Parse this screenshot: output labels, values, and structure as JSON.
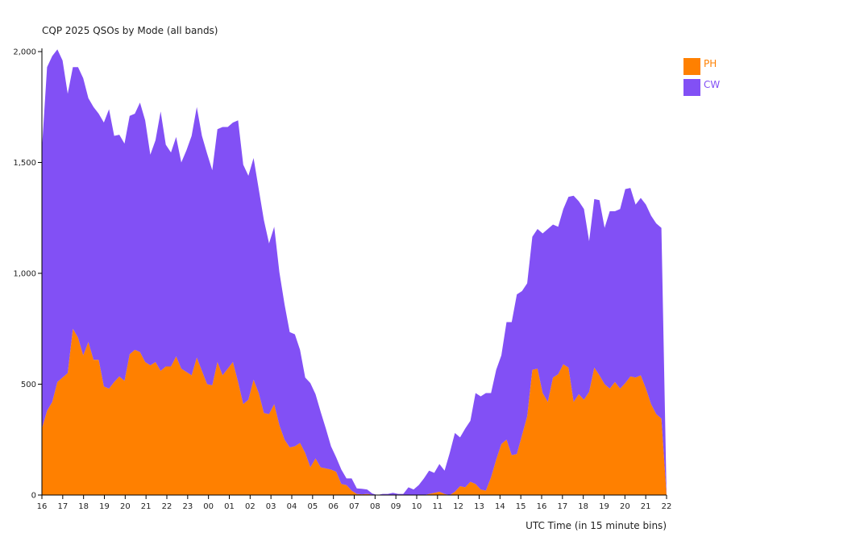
{
  "chart_data": {
    "type": "area",
    "stacked": true,
    "title": "CQP 2025 QSOs by Mode (all bands)",
    "xlabel": "UTC Time (in 15 minute bins)",
    "ylabel": "",
    "ylim": [
      0,
      2000
    ],
    "y_ticks": [
      0,
      500,
      1000,
      1500,
      2000
    ],
    "y_tick_labels": [
      "0",
      "500",
      "1,000",
      "1,500",
      "2,000"
    ],
    "x_tick_labels": [
      "16",
      "17",
      "18",
      "19",
      "20",
      "21",
      "22",
      "23",
      "00",
      "01",
      "02",
      "03",
      "04",
      "05",
      "06",
      "07",
      "08",
      "09",
      "10",
      "11",
      "12",
      "13",
      "14",
      "15",
      "16",
      "17",
      "18",
      "19",
      "20",
      "21",
      "22"
    ],
    "bin_minutes": 15,
    "grid": false,
    "legend_position": "top-right",
    "colors": {
      "PH": "#ff8000",
      "CW": "#8250f5"
    },
    "series": [
      {
        "name": "PH",
        "values": [
          300,
          380,
          420,
          510,
          530,
          550,
          750,
          710,
          630,
          690,
          610,
          610,
          490,
          480,
          510,
          535,
          515,
          635,
          655,
          645,
          600,
          585,
          600,
          560,
          580,
          580,
          625,
          570,
          555,
          540,
          620,
          560,
          500,
          495,
          600,
          540,
          570,
          600,
          510,
          410,
          430,
          520,
          460,
          370,
          365,
          410,
          315,
          250,
          215,
          220,
          235,
          190,
          125,
          165,
          125,
          120,
          115,
          105,
          50,
          45,
          20,
          5,
          3,
          5,
          2,
          0,
          0,
          0,
          0,
          0,
          0,
          0,
          0,
          0,
          0,
          5,
          10,
          15,
          5,
          0,
          15,
          40,
          35,
          60,
          50,
          25,
          20,
          80,
          160,
          230,
          250,
          180,
          185,
          270,
          355,
          565,
          570,
          460,
          420,
          530,
          545,
          590,
          575,
          420,
          455,
          430,
          465,
          575,
          540,
          500,
          480,
          510,
          480,
          505,
          535,
          530,
          540,
          480,
          410,
          365,
          345,
          0
        ]
      },
      {
        "name": "CW",
        "values": [
          1260,
          1550,
          1560,
          1500,
          1430,
          1260,
          1180,
          1220,
          1250,
          1100,
          1140,
          1110,
          1190,
          1260,
          1110,
          1090,
          1070,
          1075,
          1065,
          1125,
          1090,
          950,
          1000,
          1170,
          1000,
          965,
          990,
          930,
          1000,
          1080,
          1130,
          1060,
          1040,
          970,
          1050,
          1120,
          1090,
          1080,
          1180,
          1080,
          1010,
          1000,
          920,
          870,
          770,
          800,
          690,
          610,
          520,
          505,
          420,
          340,
          380,
          290,
          250,
          180,
          105,
          65,
          65,
          30,
          55,
          25,
          25,
          20,
          5,
          0,
          5,
          5,
          10,
          5,
          5,
          35,
          25,
          45,
          75,
          105,
          90,
          125,
          105,
          190,
          265,
          220,
          265,
          275,
          410,
          420,
          440,
          380,
          405,
          400,
          530,
          600,
          720,
          650,
          600,
          600,
          630,
          720,
          780,
          690,
          665,
          700,
          770,
          930,
          870,
          860,
          680,
          760,
          790,
          705,
          800,
          770,
          810,
          875,
          850,
          780,
          800,
          830,
          850,
          860,
          860,
          0
        ]
      }
    ]
  }
}
